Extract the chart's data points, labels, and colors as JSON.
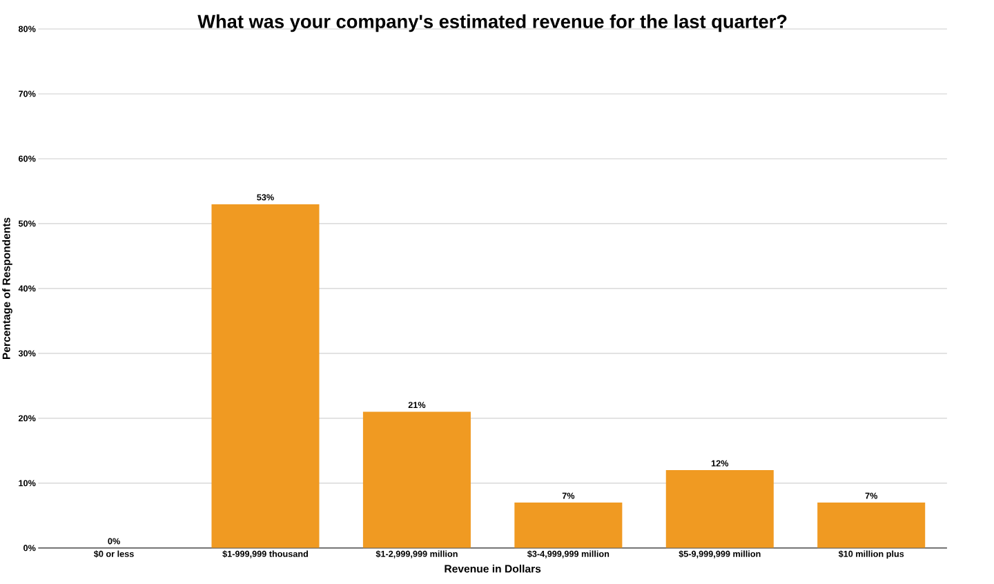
{
  "chart_data": {
    "type": "bar",
    "title": "What was your company's estimated revenue for the last quarter?",
    "xlabel": "Revenue in Dollars",
    "ylabel": "Percentage of Respondents",
    "categories": [
      "$0 or less",
      "$1-999,999 thousand",
      "$1-2,999,999 million",
      "$3-4,999,999 million",
      "$5-9,999,999 million",
      "$10 million plus"
    ],
    "values": [
      0,
      53,
      21,
      7,
      12,
      7
    ],
    "value_labels": [
      "0%",
      "53%",
      "21%",
      "7%",
      "12%",
      "7%"
    ],
    "color": "#f09a22",
    "ylim": [
      0,
      80
    ],
    "yticks": [
      {
        "value": 0,
        "label": "0%"
      },
      {
        "value": 10,
        "label": "10%"
      },
      {
        "value": 20,
        "label": "20%"
      },
      {
        "value": 30,
        "label": "30%"
      },
      {
        "value": 40,
        "label": "40%"
      },
      {
        "value": 50,
        "label": "50%"
      },
      {
        "value": 60,
        "label": "60%"
      },
      {
        "value": 70,
        "label": "70%"
      },
      {
        "value": 80,
        "label": "80%"
      }
    ],
    "grid": "y"
  }
}
